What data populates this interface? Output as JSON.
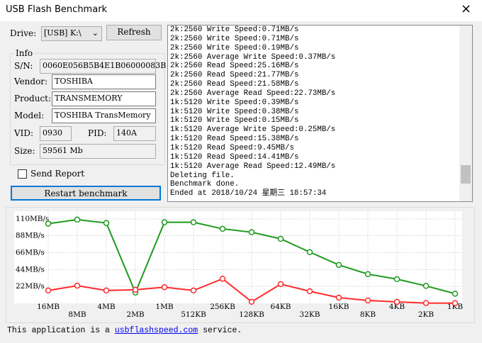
{
  "window": {
    "title": "USB Flash Benchmark",
    "close": "×"
  },
  "form": {
    "drive_label": "Drive:",
    "drive_value": "[USB] K:\\",
    "refresh": "Refresh",
    "send_report": "Send Report",
    "restart": "Restart benchmark"
  },
  "info": {
    "title": "Info",
    "sn_label": "S/N:",
    "sn": "0060E056B5B4E1B06000083B",
    "vendor_label": "Vendor:",
    "vendor": "TOSHIBA",
    "product_label": "Product:",
    "product": "TRANSMEMORY",
    "model_label": "Model:",
    "model": "TOSHIBA TransMemory",
    "vid_label": "VID:",
    "vid": "0930",
    "pid_label": "PID:",
    "pid": "140A",
    "size_label": "Size:",
    "size": "59561 Mb"
  },
  "log": {
    "lines": [
      "2k:2560 Write Speed:0.71MB/s",
      "2k:2560 Write Speed:0.71MB/s",
      "2k:2560 Write Speed:0.19MB/s",
      "2k:2560 Average Write Speed:0.37MB/s",
      "2k:2560 Read Speed:25.16MB/s",
      "2k:2560 Read Speed:21.77MB/s",
      "2k:2560 Read Speed:21.58MB/s",
      "2k:2560 Average Read Speed:22.73MB/s",
      "1k:5120 Write Speed:0.39MB/s",
      "1k:5120 Write Speed:0.38MB/s",
      "1k:5120 Write Speed:0.15MB/s",
      "1k:5120 Average Write Speed:0.25MB/s",
      "1k:5120 Read Speed:15.38MB/s",
      "1k:5120 Read Speed:9.45MB/s",
      "1k:5120 Read Speed:14.41MB/s",
      "1k:5120 Average Read Speed:12.49MB/s",
      "Deleting file.",
      "Benchmark done.",
      "Ended at 2018/10/24 星期三 18:57:34"
    ]
  },
  "chart_data": {
    "type": "line",
    "categories": [
      "16MB",
      "8MB",
      "4MB",
      "2MB",
      "1MB",
      "512KB",
      "256KB",
      "128KB",
      "64KB",
      "32KB",
      "16KB",
      "8KB",
      "4KB",
      "2KB",
      "1KB"
    ],
    "series": [
      {
        "color": "#1e9a1e",
        "values": [
          103.7,
          109,
          104.6,
          14,
          105.6,
          105.6,
          97,
          92.6,
          84,
          66.7,
          50,
          38,
          31.5,
          22.7,
          12.5
        ]
      },
      {
        "color": "#ff2a2a",
        "values": [
          16.7,
          23,
          16.7,
          17.6,
          21,
          16.7,
          32,
          2,
          25,
          15.7,
          7.4,
          3.7,
          1.9,
          0.37,
          0.25
        ]
      }
    ],
    "ylim": [
      0,
      120
    ],
    "yticks": [
      {
        "value": 22,
        "label": "22MB/s"
      },
      {
        "value": 44,
        "label": "44MB/s"
      },
      {
        "value": 66,
        "label": "66MB/s"
      },
      {
        "value": 88,
        "label": "88MB/s"
      },
      {
        "value": 110,
        "label": "110MB/s"
      }
    ],
    "grid": true
  },
  "footer": {
    "text": "This application is a",
    "link": "usbflashspeed.com",
    "text_end": "service."
  }
}
